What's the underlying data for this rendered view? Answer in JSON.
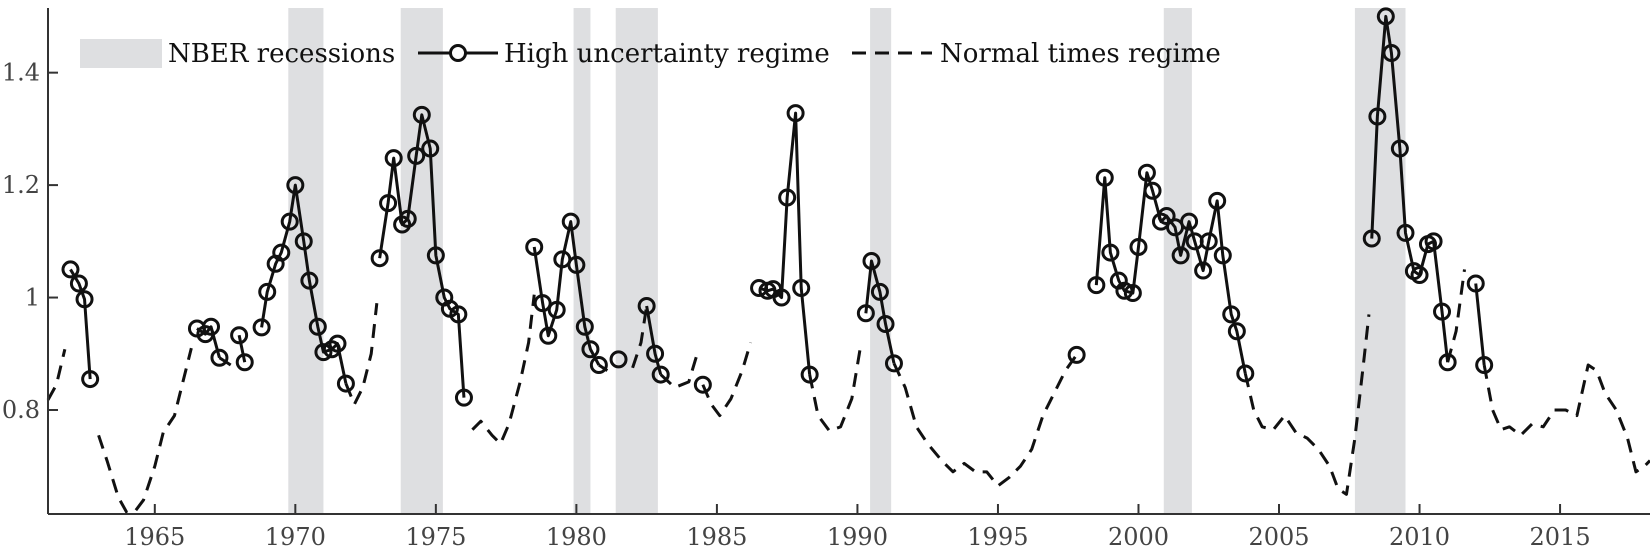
{
  "chart_data": {
    "type": "line",
    "xlim": [
      1961.2,
      2018.2
    ],
    "ylim": [
      0.615,
      1.515
    ],
    "x_ticks": [
      1965,
      1970,
      1975,
      1980,
      1985,
      1990,
      1995,
      2000,
      2005,
      2010,
      2015
    ],
    "y_ticks": [
      0.8,
      1,
      1.2,
      1.4
    ],
    "y_tick_labels": [
      "0.8",
      "1",
      "1.2",
      "1.4"
    ],
    "grid": false,
    "legend_placement": "top-left",
    "colors": {
      "recession": "#dedfe1",
      "line": "#111111",
      "axis": "#333333"
    },
    "recessions": {
      "name": "NBER recessions",
      "periods": [
        [
          1969.75,
          1971.0
        ],
        [
          1973.75,
          1975.25
        ],
        [
          1979.9,
          1980.5
        ],
        [
          1981.4,
          1982.9
        ],
        [
          1990.45,
          1991.2
        ],
        [
          2000.9,
          2001.9
        ],
        [
          2007.7,
          2009.5
        ]
      ]
    },
    "series": [
      {
        "name": "High uncertainty regime",
        "style": "solid-circle",
        "segments": [
          [
            [
              1962.0,
              1.05
            ],
            [
              1962.3,
              1.025
            ],
            [
              1962.5,
              0.997
            ],
            [
              1962.7,
              0.855
            ]
          ],
          [
            [
              1966.5,
              0.945
            ],
            [
              1966.8,
              0.935
            ],
            [
              1967.0,
              0.948
            ],
            [
              1967.3,
              0.893
            ]
          ],
          [
            [
              1968.0,
              0.933
            ],
            [
              1968.2,
              0.885
            ]
          ],
          [
            [
              1968.8,
              0.947
            ],
            [
              1969.0,
              1.01
            ],
            [
              1969.3,
              1.06
            ],
            [
              1969.5,
              1.08
            ],
            [
              1969.8,
              1.135
            ],
            [
              1970.0,
              1.2
            ],
            [
              1970.3,
              1.1
            ],
            [
              1970.5,
              1.03
            ],
            [
              1970.8,
              0.948
            ],
            [
              1971.0,
              0.903
            ],
            [
              1971.3,
              0.908
            ],
            [
              1971.5,
              0.918
            ],
            [
              1971.8,
              0.847
            ]
          ],
          [
            [
              1973.0,
              1.07
            ],
            [
              1973.3,
              1.168
            ],
            [
              1973.5,
              1.248
            ],
            [
              1973.8,
              1.13
            ],
            [
              1974.0,
              1.14
            ],
            [
              1974.3,
              1.252
            ],
            [
              1974.5,
              1.325
            ],
            [
              1974.8,
              1.265
            ],
            [
              1975.0,
              1.075
            ],
            [
              1975.3,
              1.0
            ],
            [
              1975.5,
              0.98
            ],
            [
              1975.8,
              0.97
            ],
            [
              1976.0,
              0.822
            ]
          ],
          [
            [
              1978.5,
              1.09
            ],
            [
              1978.8,
              0.99
            ],
            [
              1979.0,
              0.932
            ],
            [
              1979.3,
              0.978
            ],
            [
              1979.5,
              1.068
            ],
            [
              1979.8,
              1.135
            ],
            [
              1980.0,
              1.058
            ],
            [
              1980.3,
              0.948
            ],
            [
              1980.5,
              0.908
            ],
            [
              1980.8,
              0.88
            ]
          ],
          [
            [
              1981.5,
              0.89
            ]
          ],
          [
            [
              1982.5,
              0.985
            ],
            [
              1982.8,
              0.9
            ],
            [
              1983.0,
              0.863
            ]
          ],
          [
            [
              1984.5,
              0.845
            ]
          ],
          [
            [
              1986.5,
              1.017
            ],
            [
              1986.8,
              1.012
            ],
            [
              1987.0,
              1.015
            ],
            [
              1987.3,
              1.0
            ],
            [
              1987.5,
              1.178
            ],
            [
              1987.8,
              1.328
            ],
            [
              1988.0,
              1.017
            ],
            [
              1988.3,
              0.863
            ]
          ],
          [
            [
              1990.3,
              0.972
            ],
            [
              1990.5,
              1.065
            ],
            [
              1990.8,
              1.01
            ],
            [
              1991.0,
              0.953
            ],
            [
              1991.3,
              0.883
            ]
          ],
          [
            [
              1997.8,
              0.898
            ]
          ],
          [
            [
              1998.5,
              1.022
            ],
            [
              1998.8,
              1.213
            ],
            [
              1999.0,
              1.08
            ],
            [
              1999.3,
              1.03
            ],
            [
              1999.5,
              1.012
            ],
            [
              1999.8,
              1.008
            ],
            [
              2000.0,
              1.09
            ],
            [
              2000.3,
              1.222
            ],
            [
              2000.5,
              1.19
            ],
            [
              2000.8,
              1.135
            ],
            [
              2001.0,
              1.145
            ],
            [
              2001.3,
              1.125
            ],
            [
              2001.5,
              1.075
            ],
            [
              2001.8,
              1.135
            ],
            [
              2002.0,
              1.1
            ],
            [
              2002.3,
              1.048
            ],
            [
              2002.5,
              1.1
            ],
            [
              2002.8,
              1.172
            ],
            [
              2003.0,
              1.075
            ],
            [
              2003.3,
              0.97
            ],
            [
              2003.5,
              0.94
            ],
            [
              2003.8,
              0.865
            ]
          ],
          [
            [
              2008.3,
              1.105
            ],
            [
              2008.5,
              1.322
            ],
            [
              2008.8,
              1.5
            ],
            [
              2009.0,
              1.435
            ],
            [
              2009.3,
              1.265
            ],
            [
              2009.5,
              1.115
            ],
            [
              2009.8,
              1.047
            ],
            [
              2010.0,
              1.04
            ],
            [
              2010.3,
              1.095
            ],
            [
              2010.5,
              1.1
            ],
            [
              2010.8,
              0.975
            ],
            [
              2011.0,
              0.885
            ]
          ],
          [
            [
              2012.0,
              1.025
            ],
            [
              2012.3,
              0.88
            ]
          ]
        ]
      },
      {
        "name": "Normal times regime",
        "style": "dashed",
        "segments": [
          [
            [
              1961.2,
              0.818
            ],
            [
              1961.5,
              0.845
            ],
            [
              1961.8,
              0.908
            ]
          ],
          [
            [
              1963.0,
              0.755
            ],
            [
              1963.3,
              0.71
            ],
            [
              1963.7,
              0.645
            ],
            [
              1964.0,
              0.618
            ],
            [
              1964.3,
              0.62
            ],
            [
              1964.6,
              0.64
            ],
            [
              1965.0,
              0.7
            ],
            [
              1965.3,
              0.76
            ],
            [
              1965.7,
              0.79
            ],
            [
              1966.0,
              0.85
            ],
            [
              1966.3,
              0.91
            ]
          ],
          [
            [
              1967.3,
              0.893
            ],
            [
              1967.7,
              0.88
            ]
          ],
          [
            [
              1971.8,
              0.847
            ],
            [
              1972.1,
              0.81
            ],
            [
              1972.4,
              0.84
            ],
            [
              1972.7,
              0.9
            ],
            [
              1972.9,
              0.99
            ]
          ],
          [
            [
              1976.3,
              0.765
            ],
            [
              1976.6,
              0.78
            ],
            [
              1977.0,
              0.755
            ],
            [
              1977.3,
              0.74
            ],
            [
              1977.6,
              0.775
            ],
            [
              1978.0,
              0.85
            ],
            [
              1978.3,
              0.92
            ],
            [
              1978.5,
              1.005
            ]
          ],
          [
            [
              1980.8,
              0.88
            ],
            [
              1981.1,
              0.87
            ]
          ],
          [
            [
              1982.0,
              0.875
            ],
            [
              1982.3,
              0.92
            ],
            [
              1982.5,
              0.985
            ]
          ],
          [
            [
              1983.0,
              0.863
            ],
            [
              1983.5,
              0.84
            ],
            [
              1984.0,
              0.85
            ],
            [
              1984.3,
              0.9
            ]
          ],
          [
            [
              1984.5,
              0.845
            ],
            [
              1984.8,
              0.81
            ],
            [
              1985.1,
              0.79
            ],
            [
              1985.5,
              0.82
            ],
            [
              1985.9,
              0.87
            ],
            [
              1986.2,
              0.92
            ]
          ],
          [
            [
              1988.3,
              0.863
            ],
            [
              1988.6,
              0.79
            ],
            [
              1989.0,
              0.763
            ],
            [
              1989.4,
              0.77
            ],
            [
              1989.8,
              0.82
            ],
            [
              1990.1,
              0.91
            ]
          ],
          [
            [
              1991.3,
              0.883
            ],
            [
              1991.7,
              0.84
            ],
            [
              1992.1,
              0.77
            ],
            [
              1992.5,
              0.74
            ],
            [
              1993.0,
              0.71
            ],
            [
              1993.4,
              0.69
            ],
            [
              1993.8,
              0.705
            ],
            [
              1994.2,
              0.69
            ],
            [
              1994.6,
              0.69
            ],
            [
              1995.0,
              0.665
            ],
            [
              1995.4,
              0.68
            ],
            [
              1995.8,
              0.7
            ],
            [
              1996.2,
              0.73
            ],
            [
              1996.6,
              0.79
            ],
            [
              1997.0,
              0.83
            ],
            [
              1997.4,
              0.87
            ],
            [
              1997.8,
              0.898
            ]
          ],
          [
            [
              2003.8,
              0.865
            ],
            [
              2004.1,
              0.8
            ],
            [
              2004.4,
              0.77
            ],
            [
              2004.8,
              0.765
            ],
            [
              2005.2,
              0.79
            ],
            [
              2005.6,
              0.76
            ],
            [
              2006.0,
              0.75
            ],
            [
              2006.4,
              0.73
            ],
            [
              2006.8,
              0.7
            ],
            [
              2007.1,
              0.66
            ],
            [
              2007.4,
              0.65
            ],
            [
              2007.7,
              0.75
            ],
            [
              2008.0,
              0.88
            ],
            [
              2008.2,
              0.97
            ]
          ],
          [
            [
              2011.0,
              0.885
            ],
            [
              2011.3,
              0.94
            ],
            [
              2011.6,
              1.05
            ]
          ],
          [
            [
              2012.3,
              0.88
            ],
            [
              2012.6,
              0.8
            ],
            [
              2012.9,
              0.765
            ],
            [
              2013.2,
              0.77
            ],
            [
              2013.6,
              0.755
            ],
            [
              2014.0,
              0.775
            ],
            [
              2014.4,
              0.77
            ],
            [
              2014.8,
              0.8
            ],
            [
              2015.2,
              0.8
            ],
            [
              2015.6,
              0.79
            ],
            [
              2016.0,
              0.88
            ],
            [
              2016.3,
              0.87
            ],
            [
              2016.6,
              0.83
            ],
            [
              2017.0,
              0.8
            ],
            [
              2017.4,
              0.75
            ],
            [
              2017.7,
              0.69
            ],
            [
              2018.0,
              0.7
            ],
            [
              2018.2,
              0.71
            ]
          ]
        ]
      }
    ]
  }
}
